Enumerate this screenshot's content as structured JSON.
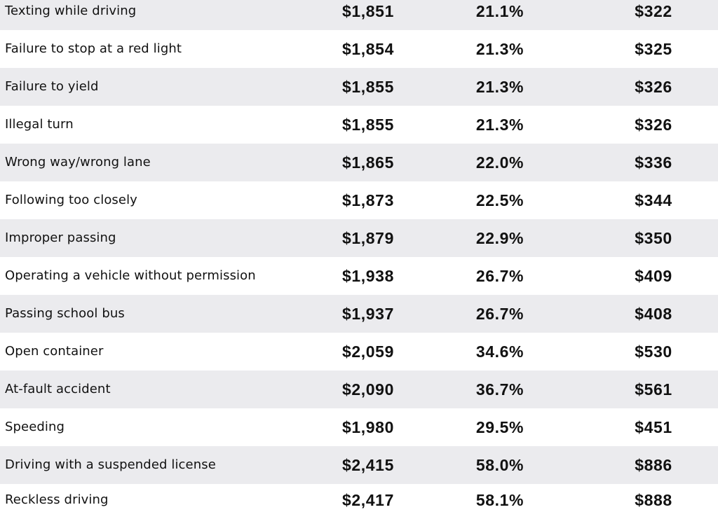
{
  "table": {
    "rows": [
      {
        "violation": "Texting while driving",
        "average_premium": "$1,851",
        "percent_increase": "21.1%",
        "dollar_increase": "$322"
      },
      {
        "violation": "Failure to stop at a red light",
        "average_premium": "$1,854",
        "percent_increase": "21.3%",
        "dollar_increase": "$325"
      },
      {
        "violation": "Failure to yield",
        "average_premium": "$1,855",
        "percent_increase": "21.3%",
        "dollar_increase": "$326"
      },
      {
        "violation": "Illegal turn",
        "average_premium": "$1,855",
        "percent_increase": "21.3%",
        "dollar_increase": "$326"
      },
      {
        "violation": "Wrong way/wrong lane",
        "average_premium": "$1,865",
        "percent_increase": "22.0%",
        "dollar_increase": "$336"
      },
      {
        "violation": "Following too closely",
        "average_premium": "$1,873",
        "percent_increase": "22.5%",
        "dollar_increase": "$344"
      },
      {
        "violation": "Improper passing",
        "average_premium": "$1,879",
        "percent_increase": "22.9%",
        "dollar_increase": "$350"
      },
      {
        "violation": "Operating a vehicle without permission",
        "average_premium": "$1,938",
        "percent_increase": "26.7%",
        "dollar_increase": "$409"
      },
      {
        "violation": "Passing school bus",
        "average_premium": "$1,937",
        "percent_increase": "26.7%",
        "dollar_increase": "$408"
      },
      {
        "violation": "Open container",
        "average_premium": "$2,059",
        "percent_increase": "34.6%",
        "dollar_increase": "$530"
      },
      {
        "violation": "At-fault accident",
        "average_premium": "$2,090",
        "percent_increase": "36.7%",
        "dollar_increase": "$561"
      },
      {
        "violation": "Speeding",
        "average_premium": "$1,980",
        "percent_increase": "29.5%",
        "dollar_increase": "$451"
      },
      {
        "violation": "Driving with a suspended license",
        "average_premium": "$2,415",
        "percent_increase": "58.0%",
        "dollar_increase": "$886"
      },
      {
        "violation": "Reckless driving",
        "average_premium": "$2,417",
        "percent_increase": "58.1%",
        "dollar_increase": "$888"
      }
    ],
    "colors": {
      "shaded_row": "#ebebee",
      "plain_row": "#ffffff",
      "text": "#111111"
    }
  }
}
